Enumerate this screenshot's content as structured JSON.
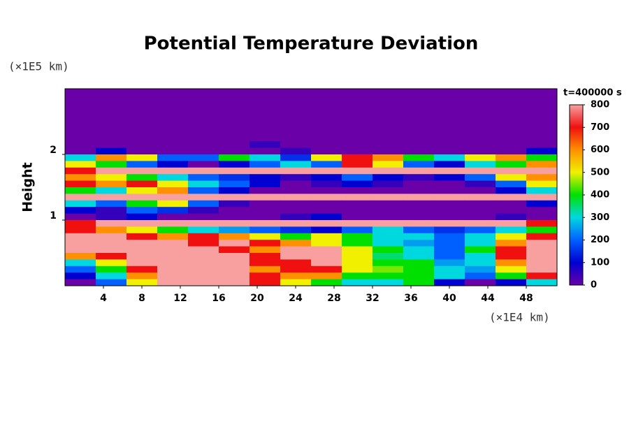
{
  "chart_data": {
    "type": "heatmap",
    "title": "Potential Temperature Deviation",
    "ylabel": "Height",
    "yunit": "(×1E5 km)",
    "xunit": "(×1E4 km)",
    "xlim": [
      0,
      51.2
    ],
    "ylim": [
      0,
      3
    ],
    "xticks": [
      4,
      8,
      12,
      16,
      20,
      24,
      28,
      32,
      36,
      40,
      44,
      48
    ],
    "yticks": [
      1,
      2
    ],
    "x": [
      1.6,
      4.8,
      8.0,
      11.2,
      14.4,
      17.6,
      20.8,
      24.0,
      27.2,
      30.4,
      33.6,
      36.8,
      40.0,
      43.2,
      46.4,
      49.6
    ],
    "y": [
      2.95,
      2.85,
      2.75,
      2.65,
      2.55,
      2.45,
      2.35,
      2.25,
      2.15,
      2.05,
      1.95,
      1.85,
      1.75,
      1.65,
      1.55,
      1.45,
      1.35,
      1.25,
      1.15,
      1.05,
      0.95,
      0.85,
      0.75,
      0.65,
      0.55,
      0.45,
      0.35,
      0.25,
      0.15,
      0.05
    ],
    "z": [
      [
        0,
        0,
        0,
        0,
        0,
        0,
        0,
        0,
        0,
        0,
        0,
        0,
        0,
        0,
        0,
        0
      ],
      [
        0,
        0,
        0,
        0,
        0,
        0,
        0,
        0,
        0,
        0,
        0,
        0,
        0,
        0,
        0,
        0
      ],
      [
        0,
        0,
        0,
        0,
        0,
        0,
        0,
        0,
        0,
        0,
        0,
        0,
        0,
        0,
        0,
        0
      ],
      [
        0,
        0,
        0,
        0,
        0,
        0,
        0,
        0,
        0,
        0,
        0,
        0,
        0,
        0,
        0,
        0
      ],
      [
        0,
        0,
        0,
        0,
        0,
        0,
        0,
        0,
        0,
        0,
        0,
        0,
        0,
        0,
        0,
        0
      ],
      [
        0,
        0,
        0,
        0,
        0,
        0,
        0,
        0,
        0,
        0,
        0,
        0,
        0,
        0,
        0,
        0
      ],
      [
        0,
        0,
        0,
        0,
        0,
        0,
        0,
        0,
        0,
        0,
        0,
        0,
        0,
        0,
        0,
        0
      ],
      [
        0,
        0,
        0,
        0,
        0,
        0,
        0,
        0,
        0,
        0,
        0,
        0,
        0,
        0,
        0,
        0
      ],
      [
        0,
        0,
        0,
        0,
        0,
        0,
        50,
        0,
        0,
        0,
        0,
        0,
        0,
        0,
        0,
        0
      ],
      [
        0,
        100,
        0,
        0,
        0,
        0,
        0,
        50,
        0,
        0,
        0,
        0,
        0,
        0,
        0,
        100
      ],
      [
        300,
        600,
        500,
        200,
        200,
        400,
        300,
        150,
        500,
        700,
        600,
        400,
        300,
        500,
        600,
        400
      ],
      [
        500,
        400,
        200,
        100,
        0,
        100,
        200,
        300,
        200,
        700,
        500,
        200,
        100,
        300,
        400,
        600
      ],
      [
        700,
        800,
        800,
        800,
        800,
        800,
        800,
        800,
        800,
        800,
        800,
        800,
        800,
        800,
        800,
        800
      ],
      [
        600,
        500,
        400,
        300,
        200,
        150,
        100,
        50,
        100,
        200,
        100,
        50,
        100,
        200,
        500,
        600
      ],
      [
        700,
        600,
        700,
        500,
        300,
        200,
        100,
        0,
        50,
        100,
        50,
        0,
        0,
        50,
        200,
        500
      ],
      [
        400,
        300,
        500,
        600,
        200,
        100,
        0,
        0,
        0,
        0,
        0,
        0,
        0,
        0,
        100,
        300
      ],
      [
        800,
        800,
        800,
        800,
        800,
        800,
        800,
        800,
        800,
        800,
        800,
        800,
        800,
        800,
        800,
        800
      ],
      [
        300,
        200,
        400,
        500,
        200,
        50,
        0,
        0,
        0,
        0,
        0,
        0,
        0,
        0,
        0,
        100
      ],
      [
        100,
        50,
        200,
        150,
        50,
        0,
        0,
        0,
        0,
        0,
        0,
        0,
        0,
        0,
        0,
        0
      ],
      [
        0,
        50,
        100,
        0,
        0,
        0,
        0,
        50,
        100,
        0,
        0,
        0,
        0,
        0,
        50,
        0
      ],
      [
        700,
        800,
        800,
        800,
        800,
        800,
        800,
        800,
        800,
        800,
        800,
        800,
        800,
        800,
        800,
        700
      ],
      [
        700,
        600,
        500,
        400,
        300,
        250,
        200,
        150,
        100,
        200,
        300,
        200,
        150,
        200,
        300,
        400
      ],
      [
        800,
        800,
        700,
        600,
        700,
        600,
        500,
        400,
        500,
        400,
        300,
        300,
        200,
        300,
        500,
        700
      ],
      [
        800,
        800,
        800,
        800,
        700,
        800,
        700,
        600,
        500,
        400,
        300,
        250,
        200,
        300,
        600,
        800
      ],
      [
        800,
        800,
        800,
        800,
        800,
        700,
        600,
        800,
        800,
        500,
        400,
        300,
        200,
        400,
        700,
        800
      ],
      [
        600,
        700,
        800,
        800,
        800,
        800,
        700,
        800,
        800,
        500,
        350,
        300,
        200,
        300,
        700,
        800
      ],
      [
        300,
        500,
        800,
        800,
        800,
        800,
        700,
        700,
        800,
        500,
        400,
        400,
        250,
        300,
        600,
        800
      ],
      [
        200,
        400,
        700,
        800,
        800,
        800,
        600,
        700,
        700,
        500,
        450,
        400,
        300,
        250,
        500,
        800
      ],
      [
        100,
        300,
        600,
        800,
        800,
        800,
        700,
        600,
        600,
        400,
        400,
        400,
        300,
        200,
        400,
        700
      ],
      [
        0,
        200,
        500,
        800,
        800,
        800,
        700,
        500,
        400,
        300,
        300,
        400,
        100,
        0,
        100,
        300
      ]
    ],
    "colorbar": {
      "label": "t=400000 s",
      "lim": [
        0,
        800
      ],
      "ticks": [
        0,
        100,
        200,
        300,
        400,
        500,
        600,
        700,
        800
      ],
      "colors": [
        "#6a00a8",
        "#0000d0",
        "#0060ff",
        "#00d8e0",
        "#00e000",
        "#f0f000",
        "#ff9000",
        "#f01010",
        "#f8a0a0"
      ]
    }
  }
}
